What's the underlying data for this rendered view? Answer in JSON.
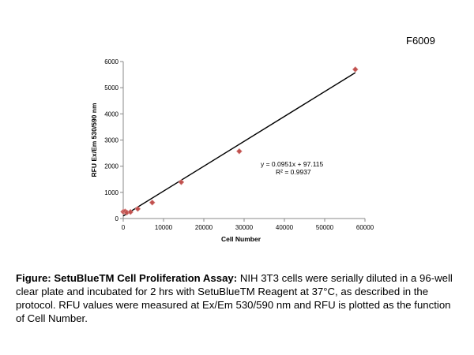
{
  "product_code": "F6009",
  "chart_data": {
    "type": "scatter",
    "xlabel": "Cell Number",
    "ylabel": "RFU Ex/Em 530/590 nm",
    "xlim": [
      0,
      60000
    ],
    "ylim": [
      0,
      6000
    ],
    "xticks": [
      "0",
      "10000",
      "20000",
      "30000",
      "40000",
      "50000",
      "60000"
    ],
    "yticks": [
      "0",
      "1000",
      "2000",
      "3000",
      "4000",
      "5000",
      "6000"
    ],
    "grid": false,
    "marker_color": "#c0504d",
    "trendline": {
      "slope": 0.0951,
      "intercept": 97.115,
      "color": "#000000"
    },
    "equation": "y = 0.0951x + 97.115",
    "r_squared": "R² = 0.9937",
    "points": [
      {
        "x": 0,
        "y": 260
      },
      {
        "x": 450,
        "y": 270
      },
      {
        "x": 900,
        "y": 230
      },
      {
        "x": 1800,
        "y": 250
      },
      {
        "x": 3600,
        "y": 370
      },
      {
        "x": 7200,
        "y": 610
      },
      {
        "x": 14400,
        "y": 1390
      },
      {
        "x": 28800,
        "y": 2570
      },
      {
        "x": 57600,
        "y": 5700
      }
    ]
  },
  "caption": {
    "bold": "Figure: SetuBlueTM Cell Proliferation Assay:",
    "text": " NIH 3T3 cells were serially diluted in a 96-well clear plate and incubated for 2 hrs with SetuBlueTM Reagent at 37°C, as described in the protocol. RFU values were measured at Ex/Em 530/590 nm and RFU is plotted as the function of Cell Number."
  }
}
